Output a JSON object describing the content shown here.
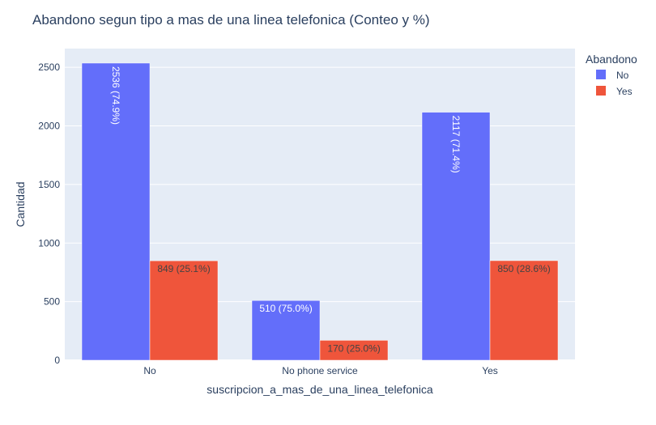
{
  "chart_data": {
    "type": "bar",
    "title": "Abandono segun tipo a mas de una linea telefonica (Conteo y %)",
    "xlabel": "suscripcion_a_mas_de_una_linea_telefonica",
    "ylabel": "Cantidad",
    "categories": [
      "No",
      "No phone service",
      "Yes"
    ],
    "ylim": [
      0,
      2660
    ],
    "yticks": [
      0,
      500,
      1000,
      1500,
      2000,
      2500
    ],
    "ytick_labels": [
      "0",
      "500",
      "1000",
      "1500",
      "2000",
      "2500"
    ],
    "grid": true,
    "legend": {
      "title": "Abandono",
      "placement": "top-right"
    },
    "series": [
      {
        "name": "No",
        "color": "#636efa",
        "label_color": "#ffffff",
        "values": [
          2536,
          510,
          2117
        ],
        "labels": [
          "2536 (74.9%)",
          "510 (75.0%)",
          "2117 (71.4%)"
        ]
      },
      {
        "name": "Yes",
        "color": "#ef553b",
        "label_color": "#444444",
        "values": [
          849,
          170,
          850
        ],
        "labels": [
          "849 (25.1%)",
          "170 (25.0%)",
          "850 (28.6%)"
        ]
      }
    ]
  }
}
